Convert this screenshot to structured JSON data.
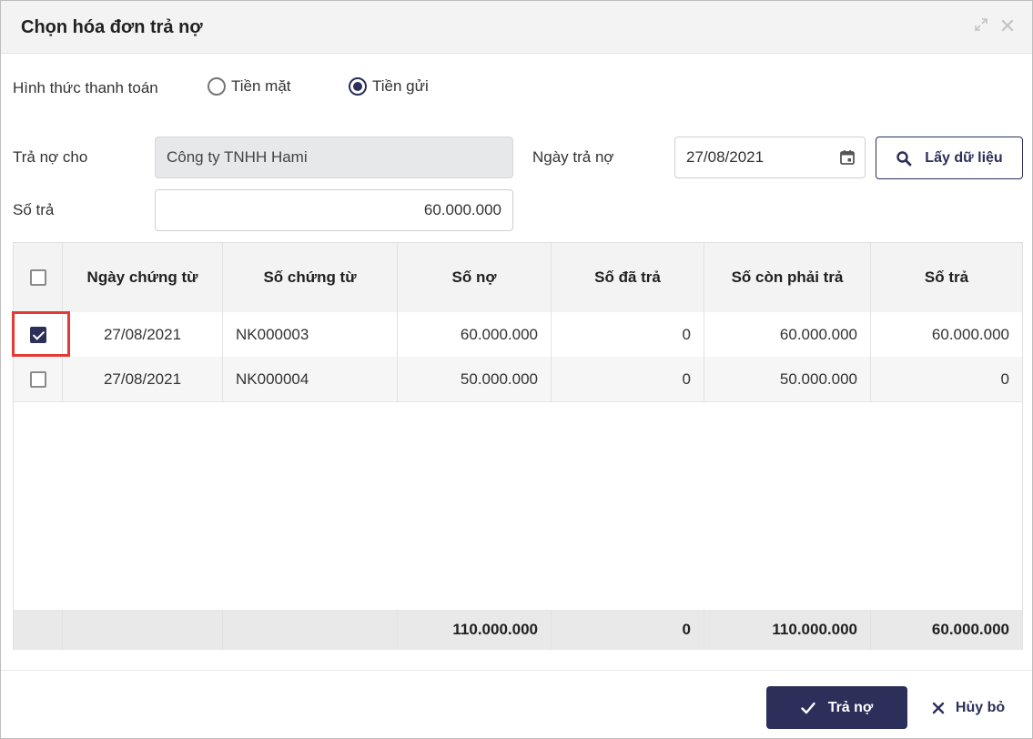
{
  "dialog": {
    "title": "Chọn hóa đơn trả nợ"
  },
  "payment_method": {
    "label": "Hình thức thanh toán",
    "options": [
      {
        "label": "Tiền mặt",
        "selected": false
      },
      {
        "label": "Tiền gửi",
        "selected": true
      }
    ]
  },
  "form": {
    "pay_for_label": "Trả nợ cho",
    "pay_for_value": "Công ty TNHH Hami",
    "pay_date_label": "Ngày trả nợ",
    "pay_date_value": "27/08/2021",
    "amount_label": "Số trả",
    "amount_value": "60.000.000",
    "fetch_button": "Lấy dữ liệu"
  },
  "table": {
    "columns": [
      "Ngày chứng từ",
      "Số chứng từ",
      "Số nợ",
      "Số đã trả",
      "Số còn phải trả",
      "Số trả"
    ],
    "rows": [
      {
        "checked": true,
        "date": "27/08/2021",
        "voucher": "NK000003",
        "debt": "60.000.000",
        "paid": "0",
        "remaining": "60.000.000",
        "pay": "60.000.000"
      },
      {
        "checked": false,
        "date": "27/08/2021",
        "voucher": "NK000004",
        "debt": "50.000.000",
        "paid": "0",
        "remaining": "50.000.000",
        "pay": "0"
      }
    ],
    "totals": {
      "debt": "110.000.000",
      "paid": "0",
      "remaining": "110.000.000",
      "pay": "60.000.000"
    }
  },
  "actions": {
    "submit": "Trả nợ",
    "cancel": "Hủy bỏ"
  },
  "colors": {
    "primary": "#2b2f59",
    "highlight": "#e53935"
  },
  "icons": [
    "expand-icon",
    "close-icon",
    "calendar-icon",
    "search-icon",
    "check-icon",
    "cancel-x-icon"
  ]
}
